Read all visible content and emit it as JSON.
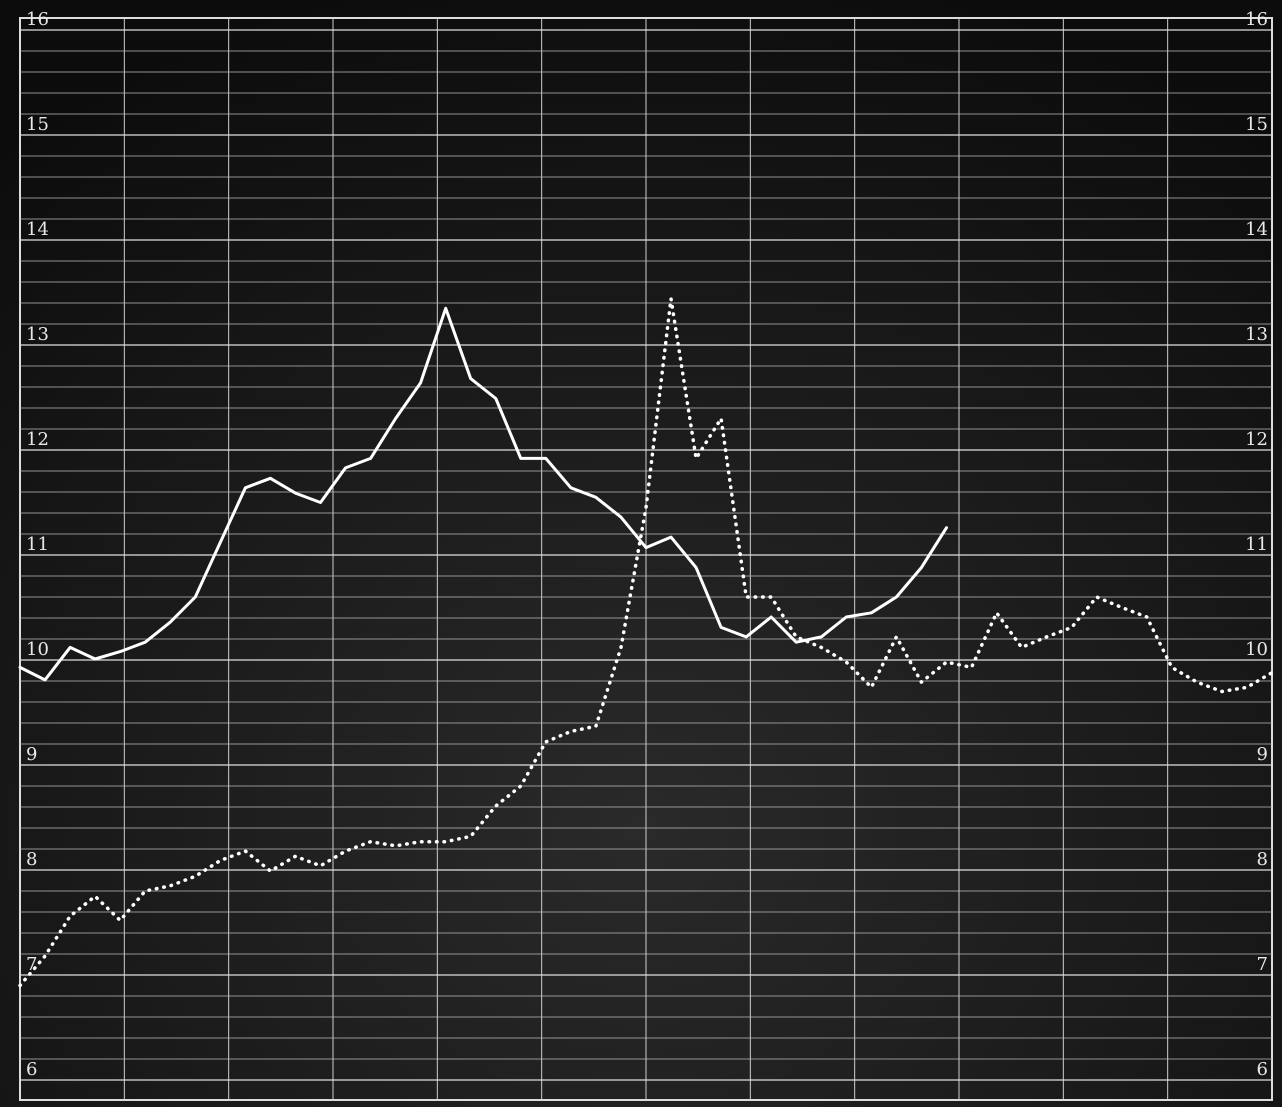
{
  "chart_data": {
    "type": "line",
    "ylim": [
      6,
      16
    ],
    "yticks": [
      6,
      7,
      8,
      9,
      10,
      11,
      12,
      13,
      14,
      15,
      16
    ],
    "y2lim": [
      6,
      16
    ],
    "y2ticks": [
      6,
      7,
      8,
      9,
      10,
      11,
      12,
      13,
      14,
      15,
      16
    ],
    "grid": true,
    "series": [
      {
        "color": "#ffffff",
        "style": "solid",
        "values": [
          9.93,
          9.81,
          10.12,
          10.01,
          10.08,
          10.17,
          10.36,
          10.6,
          11.12,
          11.64,
          11.73,
          11.59,
          11.5,
          11.83,
          11.92,
          12.3,
          12.64,
          13.35,
          12.68,
          12.49,
          11.92,
          11.92,
          11.64,
          11.55,
          11.36,
          11.07,
          11.17,
          10.88,
          10.31,
          10.22,
          10.41,
          10.17,
          10.22,
          10.41,
          10.45,
          10.6,
          10.88,
          11.26,
          null,
          null,
          null,
          null,
          null,
          null,
          null,
          null,
          null,
          null,
          null,
          null,
          null
        ]
      },
      {
        "color": "#ffffff",
        "style": "dotted",
        "values": [
          6.9,
          7.18,
          7.56,
          7.75,
          7.52,
          7.8,
          7.85,
          7.94,
          8.09,
          8.18,
          7.99,
          8.13,
          8.04,
          8.18,
          8.27,
          8.23,
          8.27,
          8.27,
          8.32,
          8.61,
          8.8,
          9.22,
          9.32,
          9.37,
          10.12,
          11.45,
          13.44,
          11.92,
          12.3,
          10.6,
          10.6,
          10.22,
          10.12,
          9.98,
          9.74,
          10.22,
          9.79,
          9.98,
          9.93,
          10.45,
          10.12,
          10.22,
          10.31,
          10.6,
          10.5,
          10.41,
          9.93,
          9.79,
          9.7,
          9.74,
          9.88
        ]
      }
    ]
  }
}
